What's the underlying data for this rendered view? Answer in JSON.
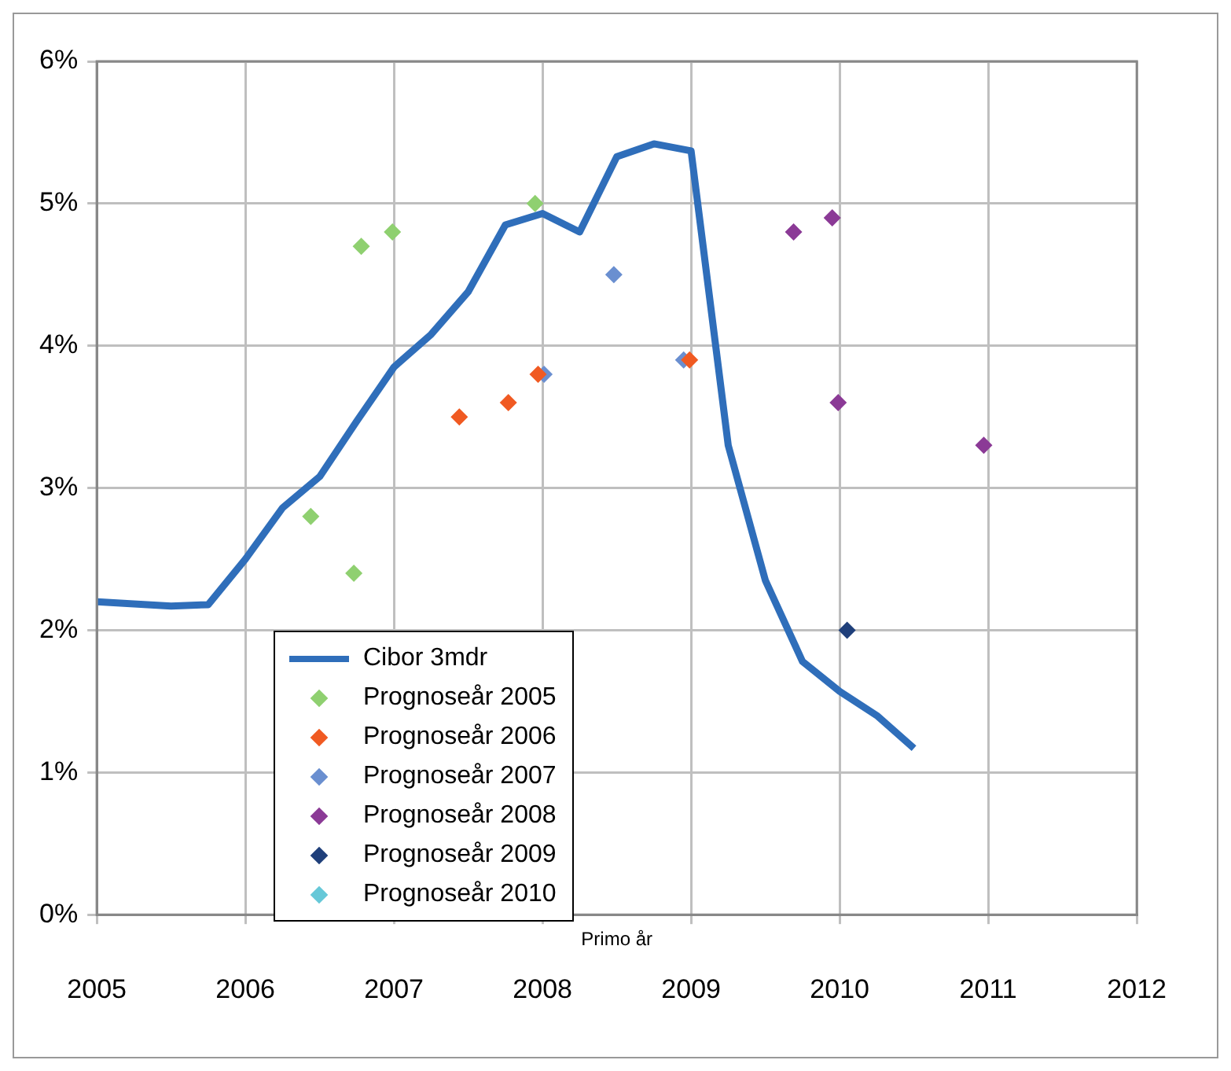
{
  "chart_data": {
    "type": "scatter",
    "xlabel": "Primo år",
    "xlim": [
      2005,
      2012
    ],
    "xticks": [
      2005,
      2006,
      2007,
      2008,
      2009,
      2010,
      2011,
      2012
    ],
    "ylim": [
      0,
      0.06
    ],
    "yticks": [
      {
        "value": 0,
        "label": "0%"
      },
      {
        "value": 0.01,
        "label": "1%"
      },
      {
        "value": 0.02,
        "label": "2%"
      },
      {
        "value": 0.03,
        "label": "3%"
      },
      {
        "value": 0.04,
        "label": "4%"
      },
      {
        "value": 0.05,
        "label": "5%"
      },
      {
        "value": 0.06,
        "label": "6%"
      }
    ],
    "grid": true,
    "legend": "bottom left",
    "marker": "diamond",
    "series": [
      {
        "name": "Cibor 3mdr",
        "type": "line",
        "marker": "none",
        "color": "#2f6eba",
        "x": [
          2005,
          2005.5,
          2005.75,
          2006,
          2006.25,
          2006.5,
          2006.75,
          2007,
          2007.25,
          2007.5,
          2007.75,
          2008,
          2008.25,
          2008.5,
          2008.75,
          2009,
          2009.25,
          2009.5,
          2009.75,
          2010,
          2010.25,
          2010.5
        ],
        "values": [
          0.022,
          0.0217,
          0.0218,
          0.025,
          0.0286,
          0.0308,
          0.0347,
          0.0385,
          0.0408,
          0.0438,
          0.0485,
          0.0493,
          0.048,
          0.0533,
          0.0542,
          0.0537,
          0.033,
          0.0235,
          0.0178,
          0.0157,
          0.014,
          0.0117
        ]
      },
      {
        "name": "Prognoseår 2005",
        "color": "#8fd070",
        "x": [
          2006.44,
          2006.73,
          2006.78,
          2006.99,
          2007.95
        ],
        "values": [
          0.028,
          0.024,
          0.047,
          0.048,
          0.05
        ]
      },
      {
        "name": "Prognoseår 2006",
        "color": "#f05a22",
        "x": [
          2007.44,
          2007.77,
          2007.97,
          2008.99
        ],
        "values": [
          0.035,
          0.036,
          0.038,
          0.039
        ]
      },
      {
        "name": "Prognoseår 2007",
        "color": "#6a8fd0",
        "x": [
          2008.01,
          2008.48,
          2008.95
        ],
        "values": [
          0.038,
          0.045,
          0.039
        ]
      },
      {
        "name": "Prognoseår 2008",
        "color": "#8b3a96",
        "x": [
          2009.69,
          2009.95,
          2009.99,
          2010.97
        ],
        "values": [
          0.048,
          0.049,
          0.036,
          0.033
        ]
      },
      {
        "name": "Prognoseår 2009",
        "color": "#1f3f7a",
        "x": [
          2010.05
        ],
        "values": [
          0.02
        ]
      },
      {
        "name": "Prognoseår 2010",
        "color": "#66c8d8"
      }
    ]
  }
}
